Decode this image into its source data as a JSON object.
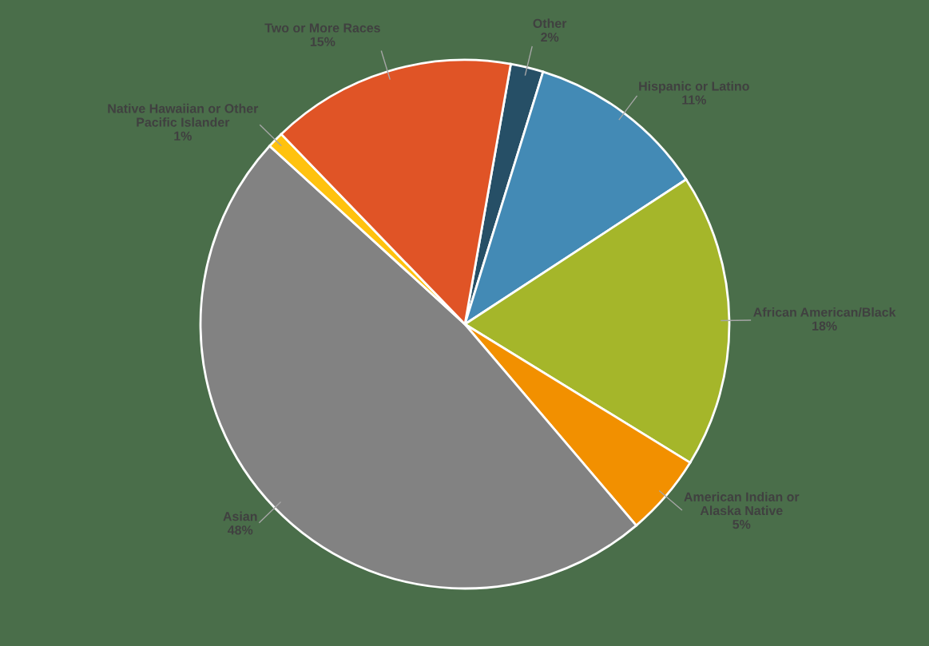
{
  "chart_data": {
    "type": "pie",
    "categories": [
      "Other",
      "Hispanic or Latino",
      "African American/Black",
      "American Indian or\nAlaska Native",
      "Asian",
      "Native Hawaiian or Other\nPacific Islander",
      "Two or More Races"
    ],
    "values": [
      2,
      11,
      18,
      5,
      48,
      1,
      15
    ],
    "colors": [
      "#264f66",
      "#438ab5",
      "#a5b62a",
      "#f29000",
      "#828282",
      "#ffc20e",
      "#e05426"
    ],
    "value_labels": [
      "2%",
      "11%",
      "18%",
      "5%",
      "48%",
      "1%",
      "15%"
    ],
    "legend": false
  }
}
